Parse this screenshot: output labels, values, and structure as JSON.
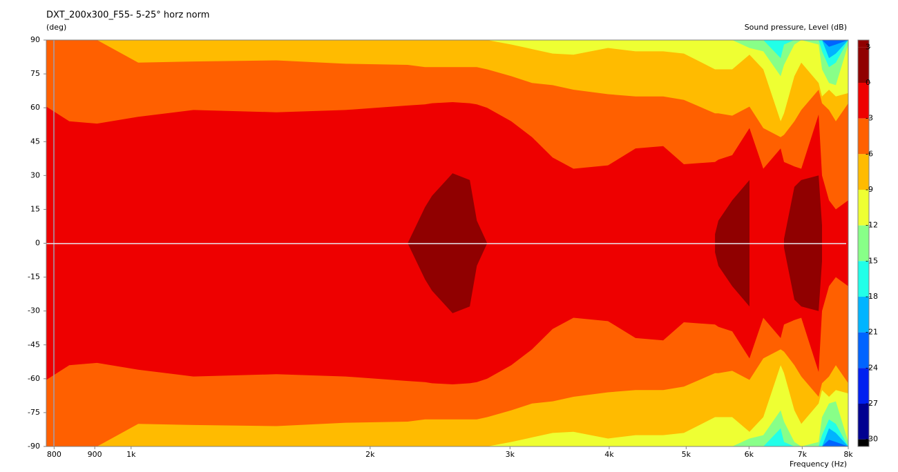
{
  "chart_data": {
    "type": "contour",
    "title": "DXT_200x300_F55- 5-25° horz norm",
    "y_label": "(deg)",
    "x_label": "Frequency  (Hz)",
    "xscale": "log",
    "symmetric": true,
    "xlim": [
      782,
      8000
    ],
    "xticks": [
      800,
      900,
      {
        "value": 1000,
        "label": "1k"
      },
      {
        "value": 2000,
        "label": "2k"
      },
      {
        "value": 3000,
        "label": "3k"
      },
      {
        "value": 4000,
        "label": "4k"
      },
      {
        "value": 5000,
        "label": "5k"
      },
      {
        "value": 6000,
        "label": "6k"
      },
      {
        "value": 7000,
        "label": "7k"
      },
      {
        "value": 8000,
        "label": "8k"
      }
    ],
    "ylim": [
      -90,
      90
    ],
    "yticks": [
      90,
      75,
      60,
      45,
      30,
      15,
      0,
      -15,
      -30,
      -45,
      -60,
      -75,
      -90
    ],
    "colorbar": {
      "label": "Sound pressure, Level  (dB)",
      "lim": [
        -30.6,
        3.6
      ],
      "ticks": [
        3,
        0,
        -3,
        -6,
        -9,
        -12,
        -15,
        -18,
        -21,
        -24,
        -27,
        -30
      ],
      "colors": [
        "#900000",
        "#ee0000",
        "#ff6000",
        "#ffbb00",
        "#eeff33",
        "#88ff88",
        "#22ffe8",
        "#00b4ff",
        "#0064ff",
        "#0020f0",
        "#000090",
        "#000000"
      ]
    },
    "x": [
      782,
      836,
      906,
      1021,
      1198,
      1524,
      1862,
      2230,
      2345,
      2393,
      2540,
      2670,
      2725,
      2808,
      3011,
      3198,
      3395,
      3606,
      3986,
      4318,
      4678,
      4967,
      5436,
      5490,
      5714,
      6008,
      6253,
      6575,
      6641,
      6843,
      6982,
      7341,
      7414,
      7565,
      7717,
      8000
    ],
    "series": [
      {
        "level": -21,
        "values": [
          90,
          90,
          90,
          90,
          90,
          90,
          90,
          90,
          90,
          90,
          90,
          90,
          90,
          90,
          90,
          90,
          90,
          90,
          90,
          90,
          90,
          90,
          90,
          90,
          90,
          90,
          90,
          90,
          90,
          90,
          90,
          90,
          90,
          87,
          88,
          90
        ]
      },
      {
        "level": -18,
        "values": [
          90,
          90,
          90,
          90,
          90,
          90,
          90,
          90,
          90,
          90,
          90,
          90,
          90,
          90,
          90,
          90,
          90,
          90,
          90,
          90,
          90,
          90,
          90,
          90,
          90,
          90,
          90,
          90,
          90,
          90,
          90,
          90,
          90,
          82,
          84,
          90
        ]
      },
      {
        "level": -15,
        "values": [
          90,
          90,
          90,
          90,
          90,
          90,
          90,
          90,
          90,
          90,
          90,
          90,
          90,
          90,
          90,
          90,
          90,
          90,
          90,
          90,
          90,
          90,
          90,
          90,
          90,
          90,
          90,
          82,
          88,
          90,
          90,
          90,
          85,
          78,
          80,
          90
        ]
      },
      {
        "level": -12,
        "values": [
          90,
          90,
          90,
          90,
          90,
          90,
          90,
          90,
          90,
          90,
          90,
          90,
          90,
          90,
          90,
          90,
          90,
          90,
          90,
          90,
          90,
          90,
          90,
          90,
          90,
          86.5,
          85,
          74,
          79,
          88,
          90,
          88,
          77,
          71,
          70,
          88
        ]
      },
      {
        "level": -9,
        "values": [
          90,
          90,
          90,
          90,
          90,
          90,
          90,
          90,
          90,
          90,
          90,
          90,
          90,
          90,
          88,
          86,
          84,
          83.5,
          86.5,
          85,
          85,
          84,
          77,
          77,
          77,
          83.5,
          77,
          54,
          57.5,
          74,
          80,
          71,
          65,
          68,
          65,
          66.5
        ]
      },
      {
        "level": -6,
        "values": [
          90,
          90,
          90,
          80,
          80.5,
          81,
          79.5,
          79,
          78,
          78,
          78,
          78,
          78,
          77,
          74,
          71,
          70,
          68,
          66,
          65,
          65,
          63.5,
          57.5,
          57.5,
          56.5,
          60.5,
          51,
          47,
          48,
          54,
          59,
          68,
          62,
          59,
          54,
          62
        ]
      },
      {
        "level": -3,
        "values": [
          60.5,
          54,
          53,
          56,
          59,
          58,
          59,
          61,
          61.5,
          62,
          62.5,
          62,
          61.5,
          60,
          54,
          47,
          38,
          33,
          34.5,
          42,
          43,
          35,
          36,
          37,
          39,
          51,
          33,
          42,
          36,
          34,
          33,
          57,
          30,
          19,
          15,
          19
        ]
      },
      {
        "level": 0,
        "values": [
          null,
          null,
          null,
          null,
          null,
          null,
          null,
          0,
          16,
          21,
          31,
          28,
          10,
          0,
          null,
          null,
          null,
          null,
          null,
          null,
          null,
          null,
          4,
          10,
          19,
          28,
          null,
          null,
          2,
          25,
          28,
          30,
          8,
          null,
          null,
          null
        ]
      }
    ]
  }
}
